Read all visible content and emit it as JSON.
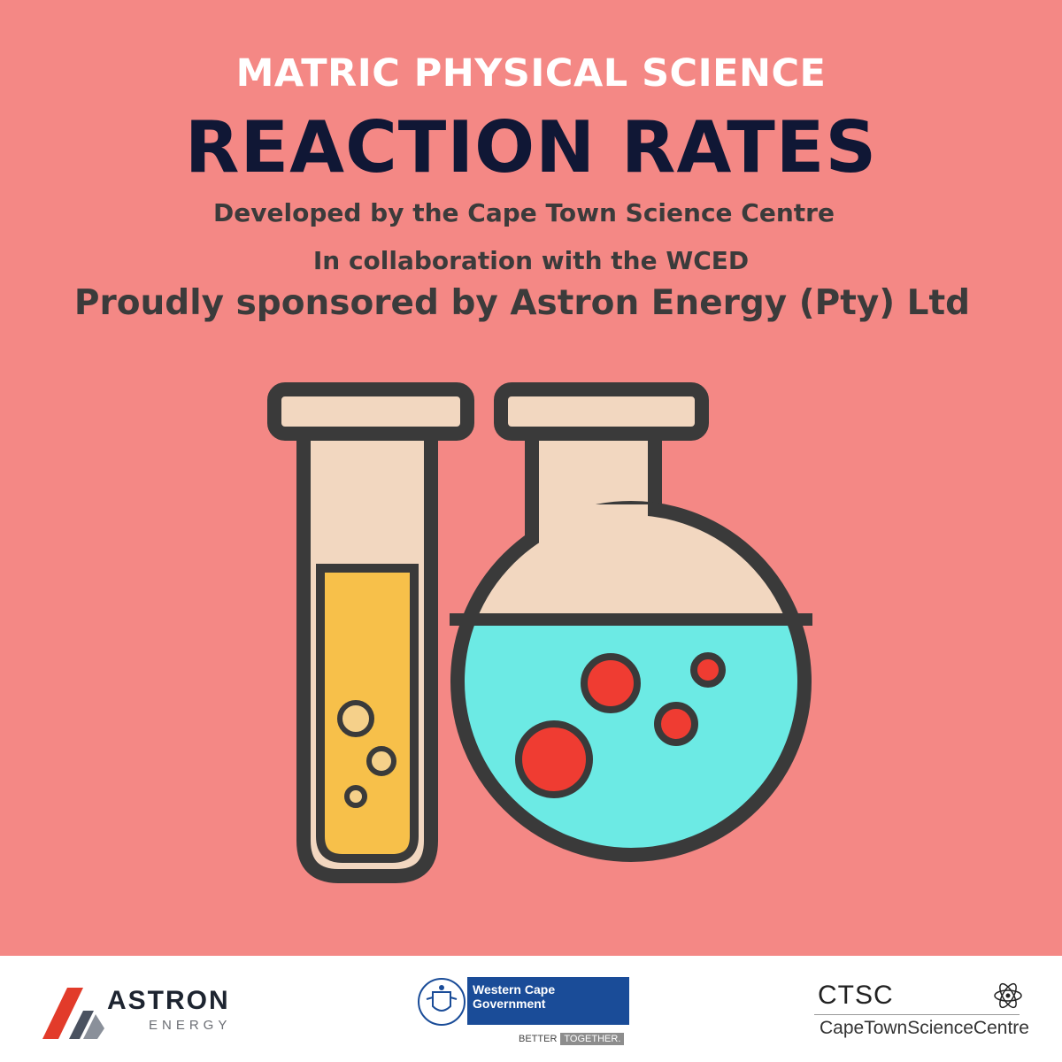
{
  "poster": {
    "kicker": "MATRIC PHYSICAL SCIENCE",
    "headline": "REACTION RATES",
    "credit_developed": "Developed by the Cape Town Science Centre",
    "credit_collab": "In collaboration with the WCED",
    "credit_sponsor": "Proudly sponsored by Astron Energy (Pty) Ltd",
    "illustration": "test-tube-and-round-flask-icon"
  },
  "colors": {
    "background": "#f48885",
    "headline": "#101735",
    "kicker": "#ffffff",
    "credits": "#3b3b3b",
    "outline": "#3a3a3a",
    "glass": "#f2d7c0",
    "yellow_liquid": "#f7c04a",
    "cyan_liquid": "#6ceae4",
    "red_bubbles": "#ef3c32"
  },
  "footer": {
    "astron": {
      "word": "ASTRON",
      "sub": "ENERGY"
    },
    "wcg": {
      "name": "Western Cape Government",
      "tag_a": "BETTER",
      "tag_b": "TOGETHER."
    },
    "ctsc": {
      "abbr": "CTSC",
      "full": "CapeTownScienceCentre"
    }
  }
}
